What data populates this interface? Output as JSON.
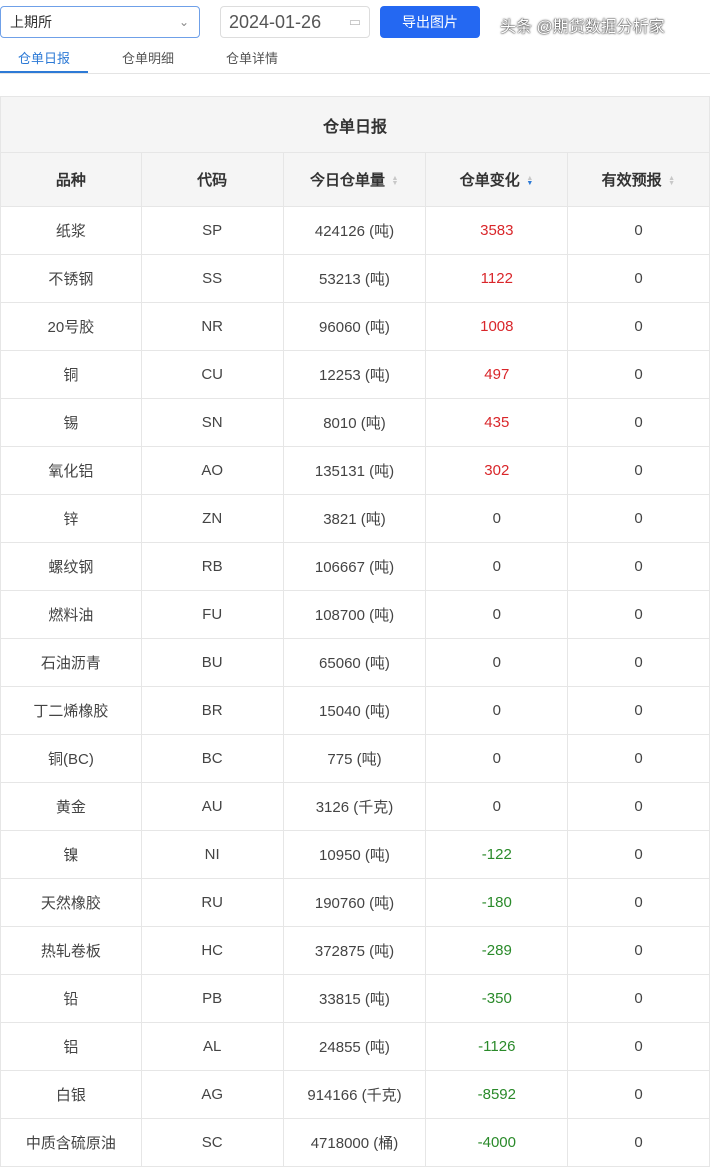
{
  "toolbar": {
    "exchange": "上期所",
    "date": "2024-01-26",
    "export_label": "导出图片"
  },
  "tabs": [
    "仓单日报",
    "仓单明细",
    "仓单详情"
  ],
  "table": {
    "title": "仓单日报",
    "headers": [
      "品种",
      "代码",
      "今日仓单量",
      "仓单变化",
      "有效预报"
    ],
    "rows": [
      [
        "纸浆",
        "SP",
        "424126 (吨)",
        "3583",
        "0"
      ],
      [
        "不锈钢",
        "SS",
        "53213 (吨)",
        "1122",
        "0"
      ],
      [
        "20号胶",
        "NR",
        "96060 (吨)",
        "1008",
        "0"
      ],
      [
        "铜",
        "CU",
        "12253 (吨)",
        "497",
        "0"
      ],
      [
        "锡",
        "SN",
        "8010 (吨)",
        "435",
        "0"
      ],
      [
        "氧化铝",
        "AO",
        "135131 (吨)",
        "302",
        "0"
      ],
      [
        "锌",
        "ZN",
        "3821 (吨)",
        "0",
        "0"
      ],
      [
        "螺纹钢",
        "RB",
        "106667 (吨)",
        "0",
        "0"
      ],
      [
        "燃料油",
        "FU",
        "108700 (吨)",
        "0",
        "0"
      ],
      [
        "石油沥青",
        "BU",
        "65060 (吨)",
        "0",
        "0"
      ],
      [
        "丁二烯橡胶",
        "BR",
        "15040 (吨)",
        "0",
        "0"
      ],
      [
        "铜(BC)",
        "BC",
        "775 (吨)",
        "0",
        "0"
      ],
      [
        "黄金",
        "AU",
        "3126 (千克)",
        "0",
        "0"
      ],
      [
        "镍",
        "NI",
        "10950 (吨)",
        "-122",
        "0"
      ],
      [
        "天然橡胶",
        "RU",
        "190760 (吨)",
        "-180",
        "0"
      ],
      [
        "热轧卷板",
        "HC",
        "372875 (吨)",
        "-289",
        "0"
      ],
      [
        "铅",
        "PB",
        "33815 (吨)",
        "-350",
        "0"
      ],
      [
        "铝",
        "AL",
        "24855 (吨)",
        "-1126",
        "0"
      ],
      [
        "白银",
        "AG",
        "914166 (千克)",
        "-8592",
        "0"
      ],
      [
        "中质含硫原油",
        "SC",
        "4718000 (桶)",
        "-4000",
        "0"
      ]
    ]
  },
  "watermark": "头条 @期货数据分析家",
  "colors": {
    "accent": "#2468f2",
    "increase": "#d9262a",
    "decrease": "#2a8a2a"
  }
}
